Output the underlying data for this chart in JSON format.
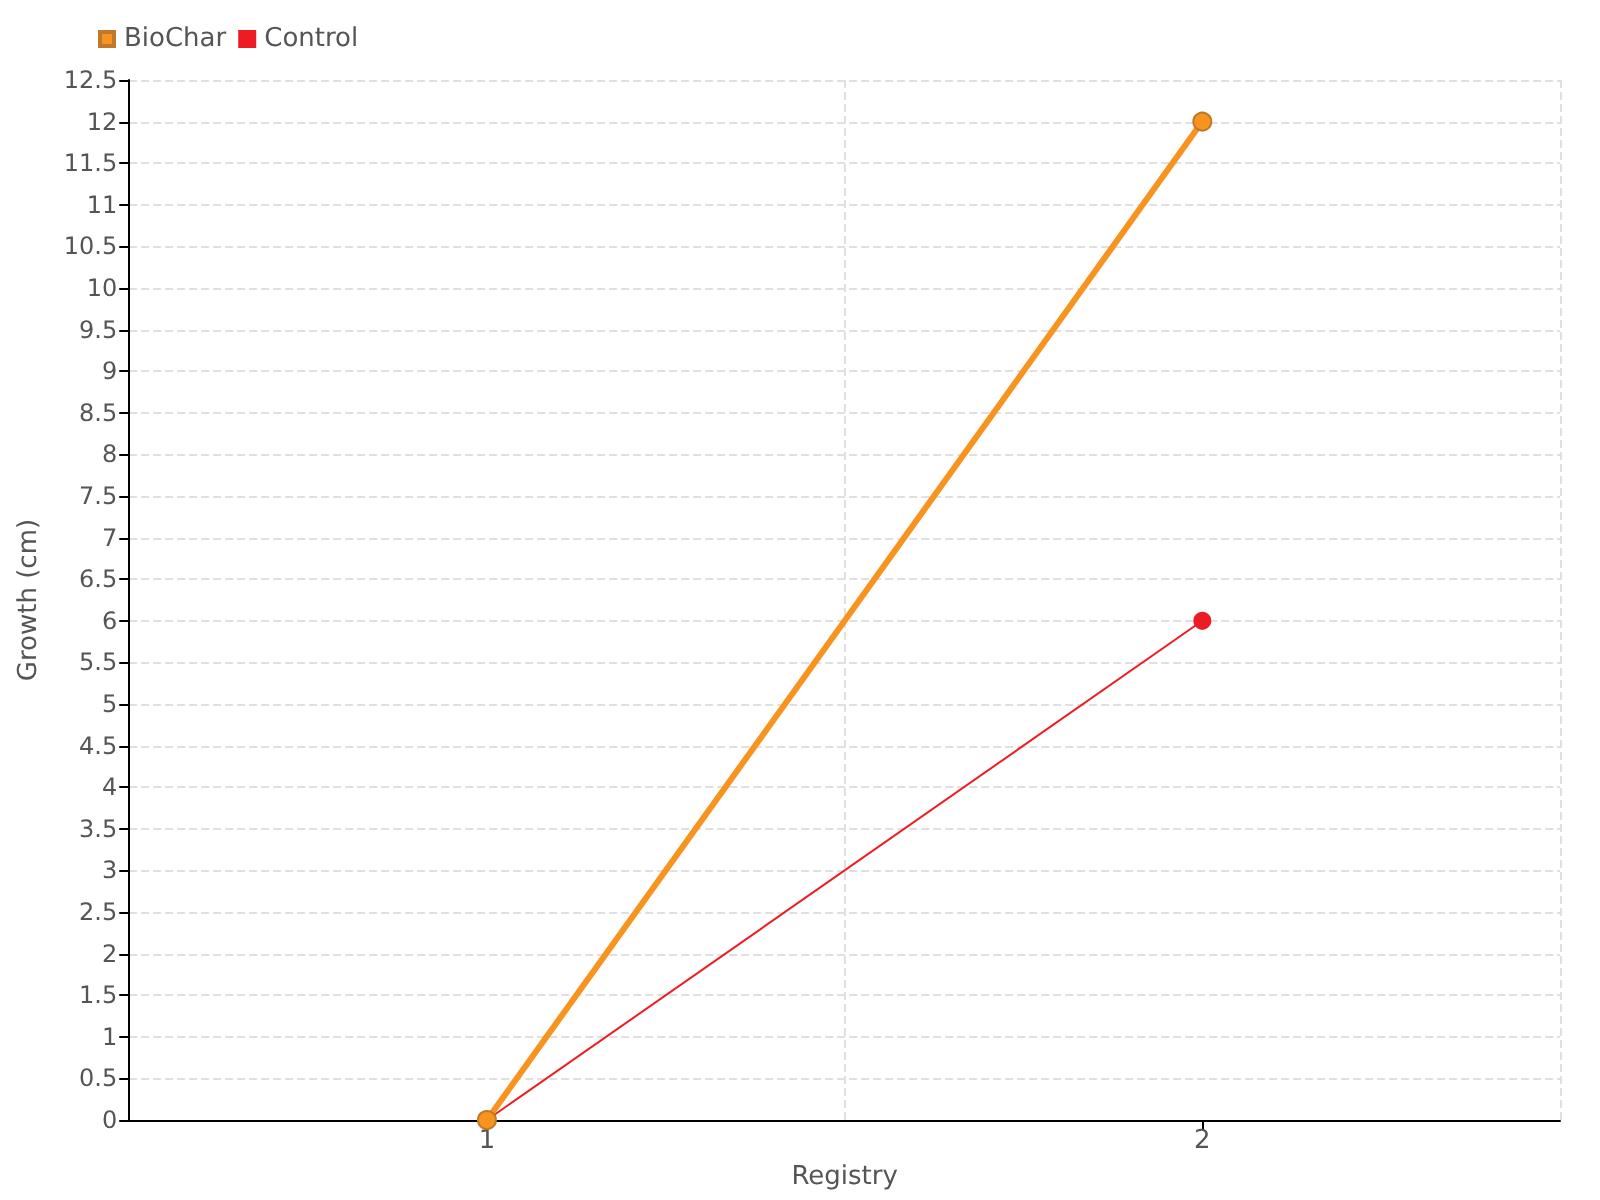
{
  "chart_data": {
    "type": "line",
    "xlabel": "Registry",
    "ylabel": "Growth (cm)",
    "categories": [
      "1",
      "2"
    ],
    "series": [
      {
        "name": "BioChar",
        "color": "#f7931e",
        "values": [
          0,
          12
        ]
      },
      {
        "name": "Control",
        "color": "#ed1c24",
        "values": [
          0,
          6
        ]
      }
    ],
    "ylim": [
      0,
      12.5
    ],
    "yticks": [
      0,
      0.5,
      1,
      1.5,
      2,
      2.5,
      3,
      3.5,
      4,
      4.5,
      5,
      5.5,
      6,
      6.5,
      7,
      7.5,
      8,
      8.5,
      9,
      9.5,
      10,
      10.5,
      11,
      11.5,
      12,
      12.5
    ],
    "grid": true,
    "legend": "top left",
    "marker": "circle"
  }
}
